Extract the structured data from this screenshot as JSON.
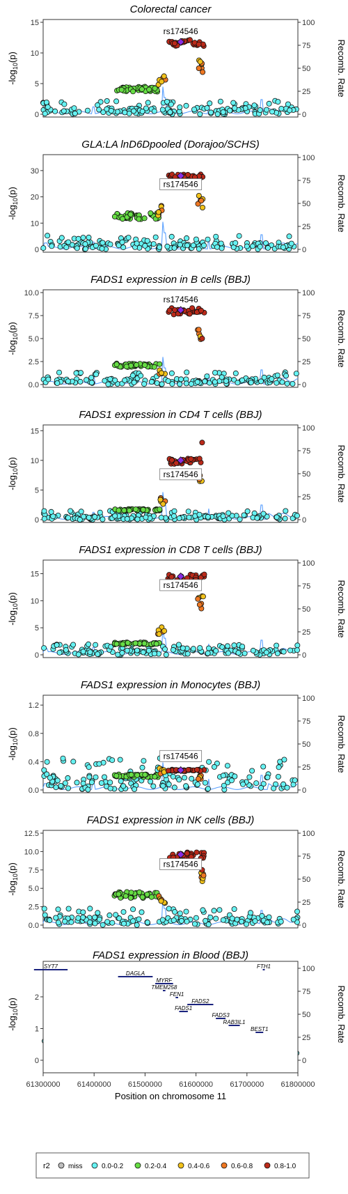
{
  "chart_data": {
    "type": "scatter",
    "description_region": "chr11",
    "x_axis": {
      "label": "Position on chromosome 11",
      "range": [
        61300000,
        61800000
      ],
      "ticks": [
        61300000,
        61400000,
        61500000,
        61600000,
        61700000,
        61800000
      ],
      "tick_labels": [
        "61300000",
        "61400000",
        "61500000",
        "61600000",
        "61700000",
        "61800000"
      ]
    },
    "y_left_label": "-log10(p)",
    "y_right_label": "Recomb. Rate",
    "y_right_range": [
      0,
      100
    ],
    "y_right_ticks": [
      0,
      25,
      50,
      75,
      100
    ],
    "lead_snp": {
      "name": "rs174546",
      "position": 61570000
    },
    "panels": [
      {
        "title": "Colorectal cancer",
        "ymax": 15,
        "ticks": [
          0,
          5,
          10,
          15
        ],
        "tick_labels": [
          "0",
          "5",
          "10",
          "15"
        ],
        "lead_y": 11.8,
        "peak": 11.8,
        "green_level": 4.5,
        "blue_level": 1.5,
        "orange_level": 6.0,
        "extra_red": null,
        "label_boxed": false,
        "label_y": 13.2
      },
      {
        "title": "GLA:LA lnD6Dpooled (Dorajoo/SCHS)",
        "ymax": 35,
        "ticks": [
          0,
          10,
          20,
          30
        ],
        "tick_labels": [
          "0",
          "10",
          "20",
          "30"
        ],
        "lead_y": 28.0,
        "peak": 28.0,
        "green_level": 14.0,
        "blue_level": 3.5,
        "orange_level": 16.0,
        "extra_red": null,
        "label_boxed": true,
        "label_y": 24.0
      },
      {
        "title": "FADS1 expression in B cells (BBJ)",
        "ymax": 10,
        "ticks": [
          0,
          2.5,
          5,
          7.5,
          10
        ],
        "tick_labels": [
          "0.0",
          "2.5",
          "5.0",
          "7.5",
          "10.0"
        ],
        "lead_y": 8.1,
        "peak": 8.1,
        "green_level": 2.3,
        "blue_level": 0.9,
        "orange_level": 1.5,
        "extra_red": 5.0,
        "label_boxed": false,
        "label_y": 9.0
      },
      {
        "title": "FADS1 expression in CD4 T cells (BBJ)",
        "ymax": 15.5,
        "ticks": [
          0,
          5,
          10,
          15
        ],
        "tick_labels": [
          "0",
          "5",
          "10",
          "15"
        ],
        "lead_y": 10.0,
        "peak": 10.0,
        "green_level": 1.8,
        "blue_level": 1.0,
        "orange_level": 3.5,
        "extra_red": 13.0,
        "label_boxed": true,
        "label_y": 7.3
      },
      {
        "title": "FADS1 expression in CD8 T cells (BBJ)",
        "ymax": 17,
        "ticks": [
          0,
          5,
          10,
          15
        ],
        "tick_labels": [
          "0",
          "5",
          "10",
          "15"
        ],
        "lead_y": 14.5,
        "peak": 14.5,
        "green_level": 2.3,
        "blue_level": 1.3,
        "orange_level": 5.0,
        "extra_red": null,
        "label_boxed": true,
        "label_y": 12.5
      },
      {
        "title": "FADS1 expression in Monocytes (BBJ)",
        "ymax": 1.3,
        "ticks": [
          0,
          0.4,
          0.8,
          1.2
        ],
        "tick_labels": [
          "0.0",
          "0.4",
          "0.8",
          "1.2"
        ],
        "lead_y": 0.28,
        "peak": 0.28,
        "green_level": 0.22,
        "blue_level": 0.3,
        "orange_level": 0.3,
        "extra_red": null,
        "label_boxed": true,
        "label_y": 0.45
      },
      {
        "title": "FADS1 expression in NK cells (BBJ)",
        "ymax": 12.5,
        "ticks": [
          0,
          2.5,
          5,
          7.5,
          10,
          12.5
        ],
        "tick_labels": [
          "0.0",
          "2.5",
          "5.0",
          "7.5",
          "10.0",
          "12.5"
        ],
        "lead_y": 9.6,
        "peak": 9.6,
        "green_level": 4.5,
        "blue_level": 1.5,
        "orange_level": 4.0,
        "extra_red": 7.5,
        "label_boxed": true,
        "label_y": 8.0
      },
      {
        "title": "FADS1 expression in Blood (BBJ)",
        "ymax": 2.9,
        "ticks": [
          0,
          1,
          2
        ],
        "tick_labels": [
          "0",
          "1",
          "2"
        ],
        "lead_y": 2.1,
        "peak": 2.1,
        "green_level": 0.6,
        "blue_level": 0.6,
        "orange_level": 1.2,
        "extra_red": null,
        "label_boxed": true,
        "label_y": 1.75
      }
    ],
    "genes": [
      {
        "name": "SYT7",
        "start": 61282000,
        "end": 61348000,
        "row": 0
      },
      {
        "name": "DAGLA",
        "start": 61447000,
        "end": 61515000,
        "row": 1
      },
      {
        "name": "MYRF",
        "start": 61520000,
        "end": 61555000,
        "row": 2
      },
      {
        "name": "TMEM258",
        "start": 61535000,
        "end": 61540000,
        "row": 3
      },
      {
        "name": "FEN1",
        "start": 61560000,
        "end": 61565000,
        "row": 4
      },
      {
        "name": "FADS2",
        "start": 61583000,
        "end": 61634000,
        "row": 5
      },
      {
        "name": "FADS1",
        "start": 61567000,
        "end": 61584000,
        "row": 6
      },
      {
        "name": "FADS3",
        "start": 61639000,
        "end": 61658000,
        "row": 7
      },
      {
        "name": "RAB3IL1",
        "start": 61664000,
        "end": 61686000,
        "row": 8
      },
      {
        "name": "BEST1",
        "start": 61717000,
        "end": 61732000,
        "row": 9
      },
      {
        "name": "FTH1",
        "start": 61731000,
        "end": 61735000,
        "row": 0
      }
    ],
    "legend": {
      "title": "r2",
      "items": [
        {
          "label": "miss",
          "color": "#bdbdbd"
        },
        {
          "label": "0.0-0.2",
          "color": "#66f2f2"
        },
        {
          "label": "0.2-0.4",
          "color": "#66dd44"
        },
        {
          "label": "0.4-0.6",
          "color": "#f2c21a"
        },
        {
          "label": "0.6-0.8",
          "color": "#ee7722"
        },
        {
          "label": "0.8-1.0",
          "color": "#bb2a1a"
        }
      ]
    },
    "colors": {
      "recomb_line": "#5aa0ff",
      "lead": "#8a2be2"
    }
  }
}
